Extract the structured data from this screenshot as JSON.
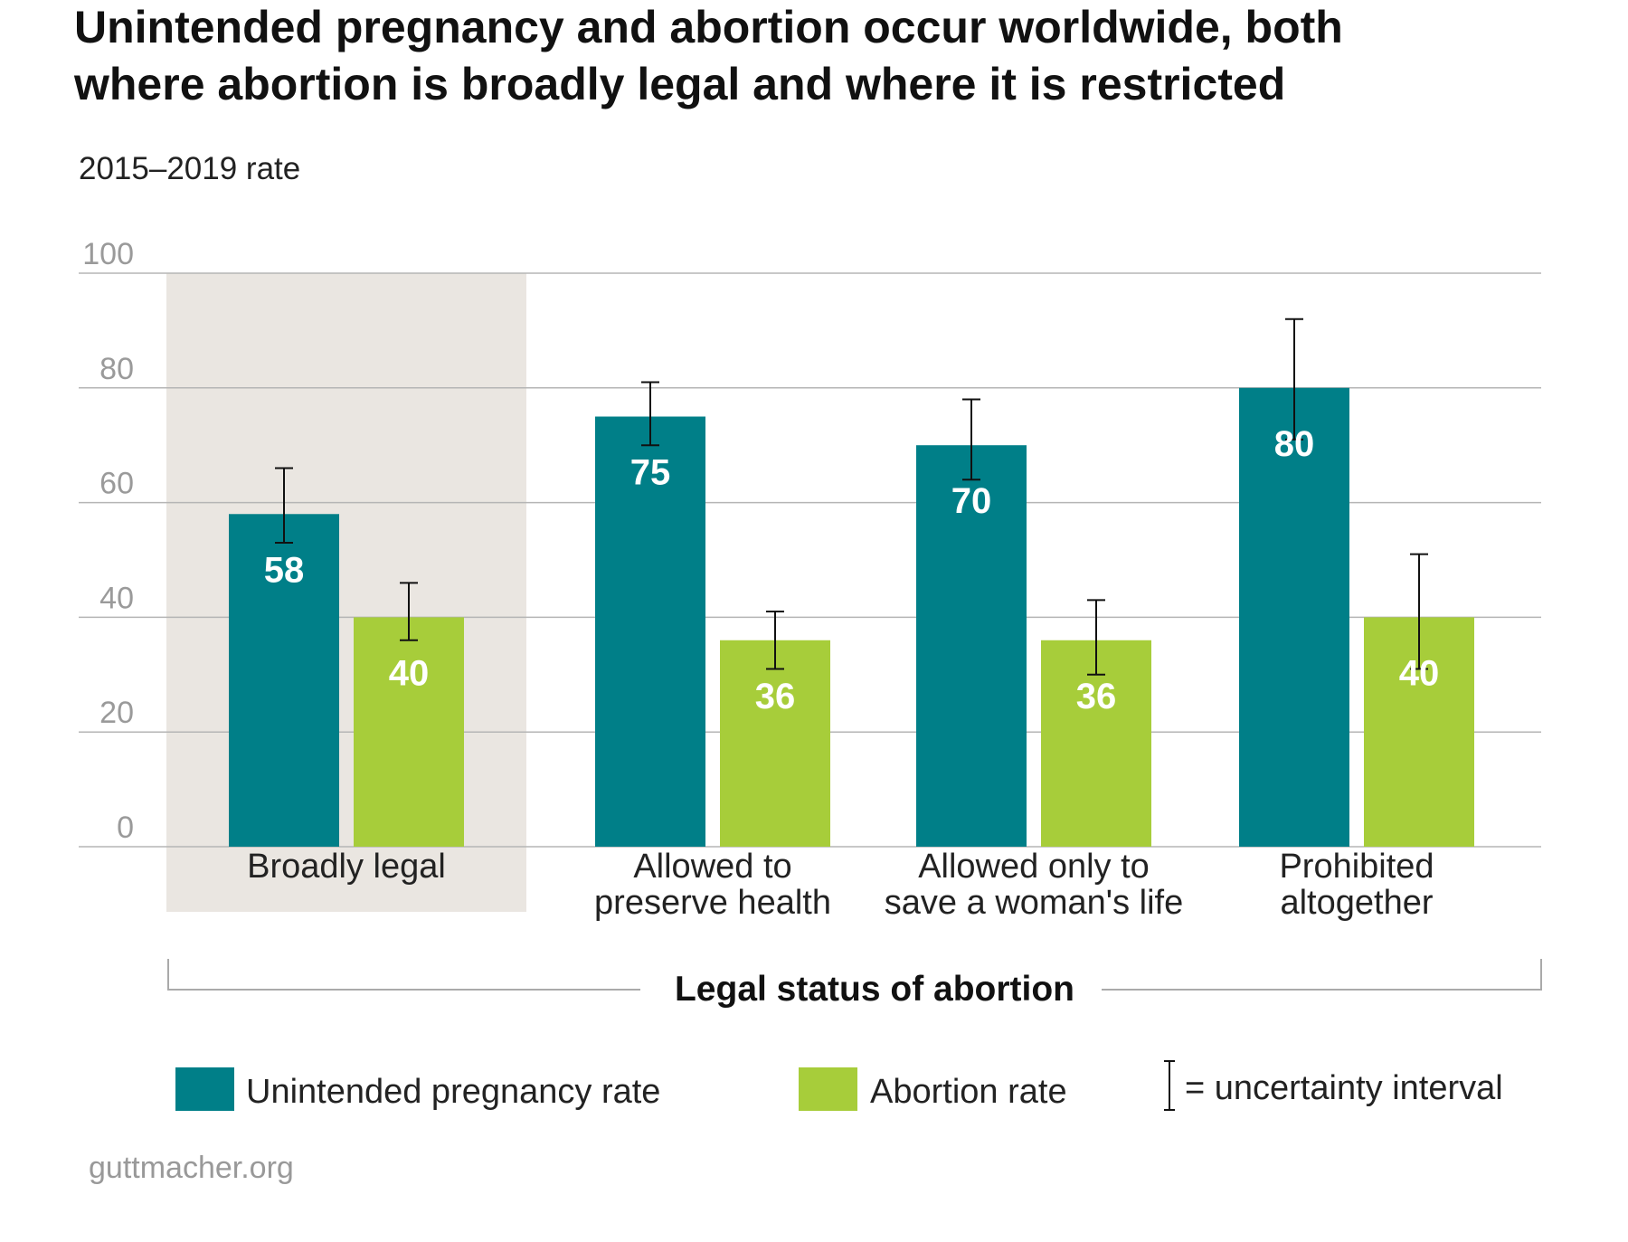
{
  "chart_data": {
    "type": "bar",
    "title": "Unintended pregnancy and abortion occur worldwide, both where abortion is broadly legal and where it is restricted",
    "title_lines": [
      "Unintended pregnancy and abortion occur worldwide, both",
      "where abortion is broadly legal and where it is restricted"
    ],
    "subtitle": "2015–2019 rate",
    "xlabel": "Legal status of abortion",
    "ylabel": "",
    "ylim": [
      0,
      100
    ],
    "yticks": [
      0,
      20,
      40,
      60,
      80,
      100
    ],
    "grid": true,
    "highlighted_category": "Broadly legal",
    "categories": [
      "Broadly legal",
      "Allowed to preserve health",
      "Allowed only to save a woman's life",
      "Prohibited altogether"
    ],
    "category_lines": [
      [
        "Broadly legal"
      ],
      [
        "Allowed to",
        "preserve health"
      ],
      [
        "Allowed only to",
        "save a woman's life"
      ],
      [
        "Prohibited",
        "altogether"
      ]
    ],
    "series": [
      {
        "name": "Unintended pregnancy rate",
        "color": "#007f88",
        "values": [
          58,
          75,
          70,
          80
        ],
        "labels": [
          "58",
          "75",
          "70",
          "80"
        ],
        "interval_low": [
          53,
          70,
          64,
          71
        ],
        "interval_high": [
          66,
          81,
          78,
          92
        ]
      },
      {
        "name": "Abortion rate",
        "color": "#a7cd3a",
        "values": [
          40,
          36,
          36,
          40
        ],
        "labels": [
          "40",
          "36",
          "36",
          "40"
        ],
        "interval_low": [
          36,
          31,
          30,
          31
        ],
        "interval_high": [
          46,
          41,
          43,
          51
        ]
      }
    ],
    "legend": {
      "items": [
        "Unintended pregnancy rate",
        "Abortion rate"
      ],
      "interval_note": "= uncertainty interval",
      "position": "bottom"
    }
  },
  "colors": {
    "highlight_band": "#eae6e1",
    "gridline": "#b5b5b5",
    "teal": "#007f88",
    "green": "#a7cd3a"
  },
  "source": "guttmacher.org"
}
